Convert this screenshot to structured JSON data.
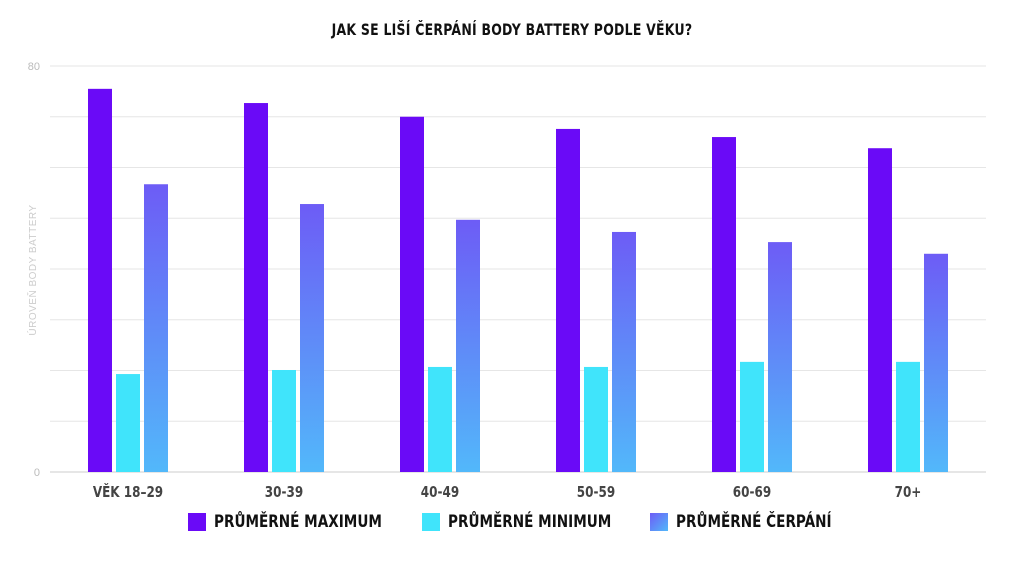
{
  "chart_data": {
    "type": "bar",
    "title": "JAK SE LIŠÍ ČERPÁNÍ BODY BATTERY PODLE VĚKU?",
    "ylabel": "ÚROVEŇ BODY BATTERY",
    "xlabel": "",
    "ylim": [
      0,
      80
    ],
    "yticks_labeled": [
      "0",
      "80"
    ],
    "grid_step": 10,
    "grid": true,
    "legend_position": "bottom",
    "categories": [
      "VĚK 18–29",
      "30-39",
      "40-49",
      "50-59",
      "60-69",
      "70+"
    ],
    "series": [
      {
        "name": "PRŮMĚRNÉ MAXIMUM",
        "color": "#6a0af7",
        "values": [
          75.5,
          72.7,
          70.0,
          67.6,
          66.0,
          63.8
        ]
      },
      {
        "name": "PRŮMĚRNÉ MINIMUM",
        "color": "#40e4fb",
        "values": [
          19.3,
          20.1,
          20.7,
          20.7,
          21.7,
          21.7
        ]
      },
      {
        "name": "PRŮMĚRNÉ ČERPÁNÍ",
        "color": "#6d5cf6",
        "gradient_to": "#52b8fa",
        "values": [
          56.7,
          52.8,
          49.7,
          47.3,
          45.3,
          43.0
        ]
      }
    ]
  }
}
